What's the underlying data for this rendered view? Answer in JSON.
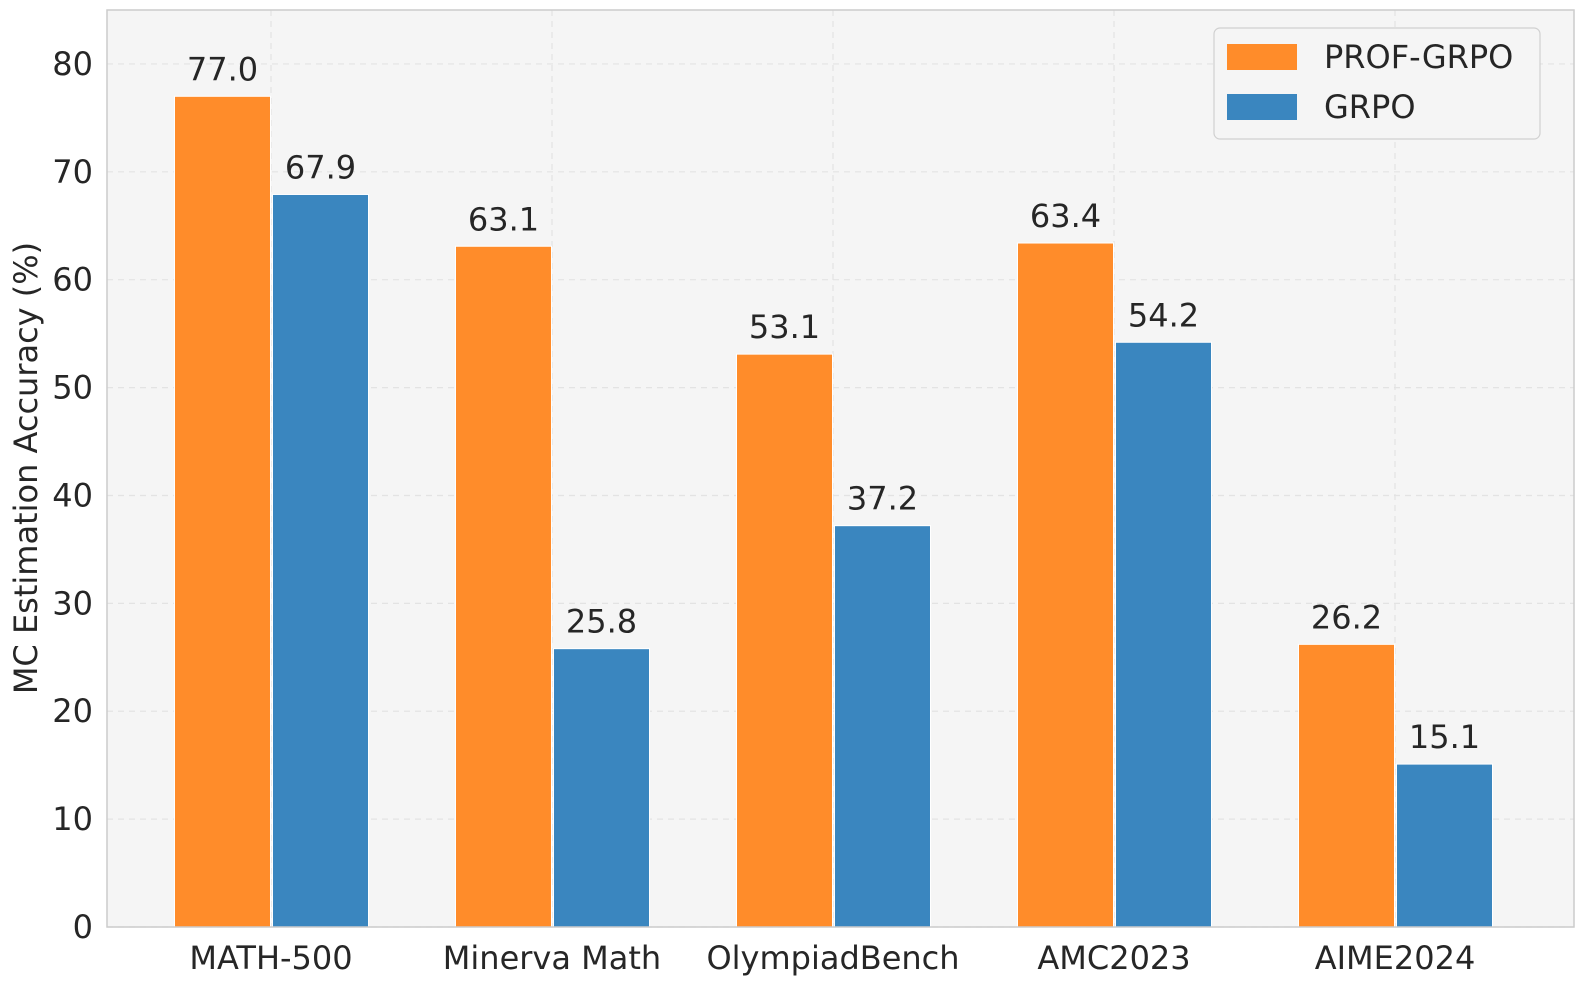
{
  "chart_data": {
    "type": "bar",
    "title": "",
    "xlabel": "",
    "ylabel": "MC Estimation Accuracy (%)",
    "ylim": [
      0,
      85
    ],
    "yticks": [
      0,
      10,
      20,
      30,
      40,
      50,
      60,
      70,
      80
    ],
    "categories": [
      "MATH-500",
      "Minerva Math",
      "OlympiadBench",
      "AMC2023",
      "AIME2024"
    ],
    "series": [
      {
        "name": "PROF-GRPO",
        "color": "#ff8c2a",
        "values": [
          77.0,
          63.1,
          53.1,
          63.4,
          26.2
        ]
      },
      {
        "name": "GRPO",
        "color": "#3a86bf",
        "values": [
          67.9,
          25.8,
          37.2,
          54.2,
          15.1
        ]
      }
    ],
    "value_format": "one-decimal",
    "grid": true,
    "grid_style": "dashed",
    "legend_position": "top-right",
    "background_color": "#f5f5f5"
  }
}
